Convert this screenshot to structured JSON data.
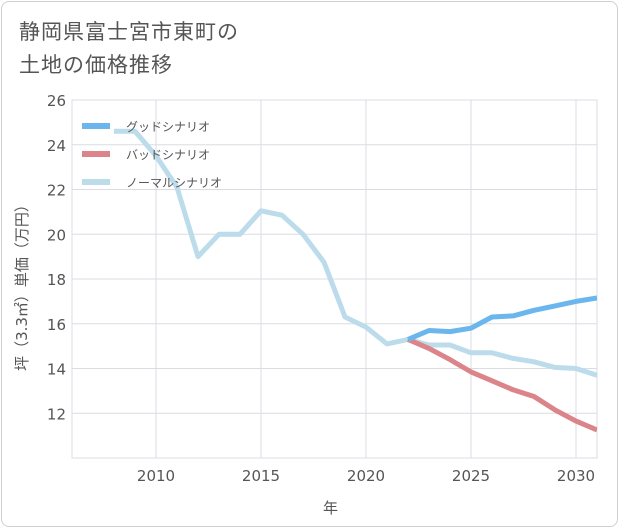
{
  "title_line1": "静岡県富士宮市東町の",
  "title_line2": "土地の価格推移",
  "colors": {
    "good": "#6bb6ec",
    "bad": "#db8489",
    "normal": "#bcdcec",
    "grid": "#d9dde3",
    "axis": "#555555"
  },
  "chart_data": {
    "type": "line",
    "xlabel": "年",
    "ylabel": "坪（3.3㎡）単価（万円）",
    "xlim": [
      2006,
      2031
    ],
    "ylim": [
      10,
      26
    ],
    "xticks": [
      2010,
      2015,
      2020,
      2025,
      2030
    ],
    "yticks": [
      12,
      14,
      16,
      18,
      20,
      22,
      24,
      26
    ],
    "grid": true,
    "legend_position": "top-left",
    "series": [
      {
        "name": "グッドシナリオ",
        "color": "#6bb6ec",
        "x": [
          2022,
          2023,
          2024,
          2025,
          2026,
          2027,
          2028,
          2029,
          2030,
          2031
        ],
        "y": [
          15.3,
          15.7,
          15.65,
          15.8,
          16.3,
          16.35,
          16.6,
          16.8,
          17.0,
          17.15
        ]
      },
      {
        "name": "バッドシナリオ",
        "color": "#db8489",
        "x": [
          2022,
          2023,
          2024,
          2025,
          2026,
          2027,
          2028,
          2029,
          2030,
          2031
        ],
        "y": [
          15.3,
          14.9,
          14.4,
          13.85,
          13.45,
          13.05,
          12.75,
          12.15,
          11.65,
          11.25
        ]
      },
      {
        "name": "ノーマルシナリオ",
        "color": "#bcdcec",
        "x": [
          2008,
          2009,
          2010,
          2011,
          2012,
          2013,
          2014,
          2015,
          2016,
          2017,
          2018,
          2019,
          2020,
          2021,
          2022,
          2023,
          2024,
          2025,
          2026,
          2027,
          2028,
          2029,
          2030,
          2031
        ],
        "y": [
          24.6,
          24.6,
          23.5,
          22.1,
          19.0,
          20.0,
          20.0,
          21.05,
          20.85,
          20.0,
          18.75,
          16.3,
          15.85,
          15.1,
          15.3,
          15.05,
          15.05,
          14.7,
          14.7,
          14.45,
          14.3,
          14.05,
          14.0,
          13.7
        ]
      }
    ]
  }
}
